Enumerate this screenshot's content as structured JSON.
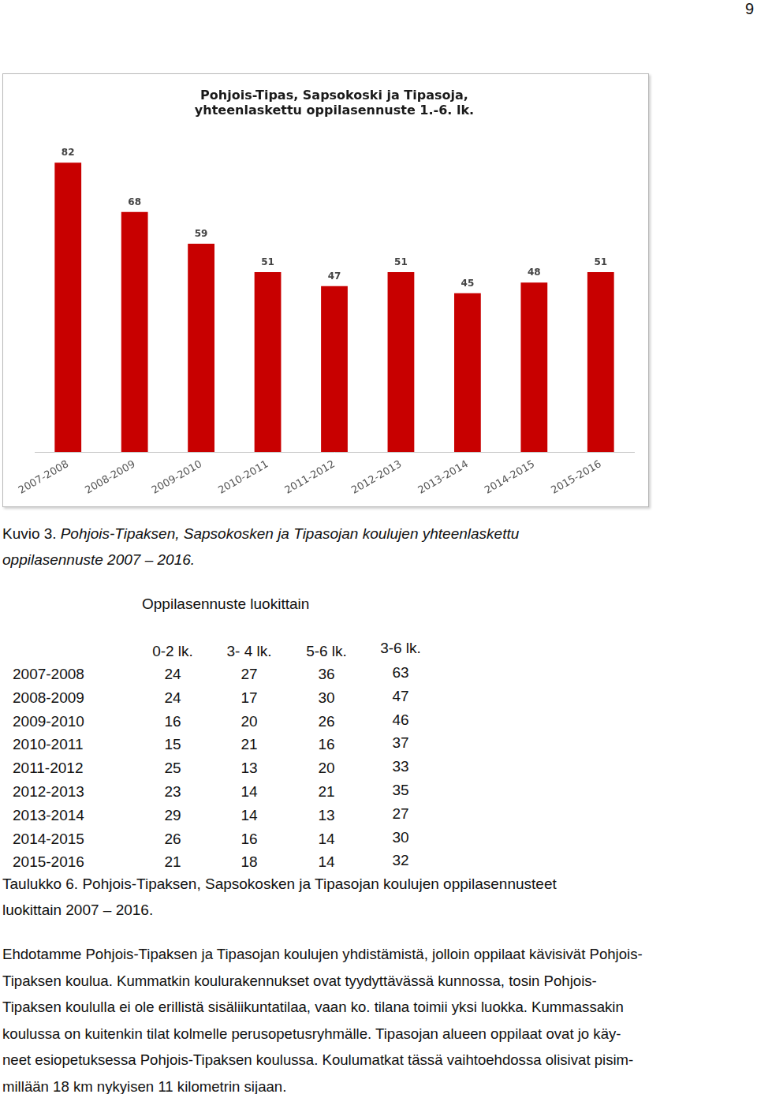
{
  "page_number": "9",
  "chart_data": {
    "type": "bar",
    "title": [
      "Pohjois-Tipas, Sapsokoski ja Tipasoja,",
      "yhteenlaskettu oppilasennuste 1.-6. lk."
    ],
    "categories": [
      "2007-2008",
      "2008-2009",
      "2009-2010",
      "2010-2011",
      "2011-2012",
      "2012-2013",
      "2013-2014",
      "2014-2015",
      "2015-2016"
    ],
    "values": [
      82,
      68,
      59,
      51,
      47,
      51,
      45,
      48,
      51
    ],
    "color": "#c80000",
    "ylim": [
      0,
      90
    ],
    "grid": false,
    "data_labels": true,
    "tick_labels": "x"
  },
  "figure_caption": {
    "label": "Kuvio 3.",
    "lines": [
      "Pohjois-Tipaksen, Sapsokosken ja Tipasojan koulujen yhteenlaskettu",
      "oppilasennuste 2007 – 2016."
    ]
  },
  "table": {
    "title": "Oppilasennuste luokittain",
    "columns": [
      "0-2 lk.",
      "3- 4 lk.",
      "5-6 lk.",
      "3-6 lk."
    ],
    "rows": [
      {
        "year": "2007-2008",
        "values": [
          24,
          27,
          36,
          63
        ]
      },
      {
        "year": "2008-2009",
        "values": [
          24,
          17,
          30,
          47
        ]
      },
      {
        "year": "2009-2010",
        "values": [
          16,
          20,
          26,
          46
        ]
      },
      {
        "year": "2010-2011",
        "values": [
          15,
          21,
          16,
          37
        ]
      },
      {
        "year": "2011-2012",
        "values": [
          25,
          13,
          20,
          33
        ]
      },
      {
        "year": "2012-2013",
        "values": [
          23,
          14,
          21,
          35
        ]
      },
      {
        "year": "2013-2014",
        "values": [
          29,
          14,
          13,
          27
        ]
      },
      {
        "year": "2014-2015",
        "values": [
          26,
          16,
          14,
          30
        ]
      },
      {
        "year": "2015-2016",
        "values": [
          21,
          18,
          14,
          32
        ]
      }
    ]
  },
  "table_caption": {
    "lines": [
      "Taulukko 6. Pohjois-Tipaksen, Sapsokosken ja Tipasojan koulujen oppilasennusteet",
      "luokittain 2007 – 2016."
    ]
  },
  "paragraph": {
    "lines": [
      "Ehdotamme Pohjois-Tipaksen ja Tipasojan koulujen yhdistämistä, jolloin oppilaat kävisivät Pohjois-",
      "Tipaksen koulua. Kummatkin koulurakennukset ovat tyydyttävässä kunnossa, tosin Pohjois-",
      "Tipaksen koululla ei ole erillistä sisäliikuntatilaa, vaan ko. tilana toimii yksi luokka. Kummassakin",
      "koulussa on kuitenkin tilat kolmelle perusopetusryhmälle. Tipasojan alueen oppilaat ovat jo käy-",
      "neet esiopetuksessa Pohjois-Tipaksen koulussa. Koulumatkat tässä vaihtoehdossa olisivat pisim-",
      "millään 18 km nykyisen 11 kilometrin sijaan."
    ]
  }
}
